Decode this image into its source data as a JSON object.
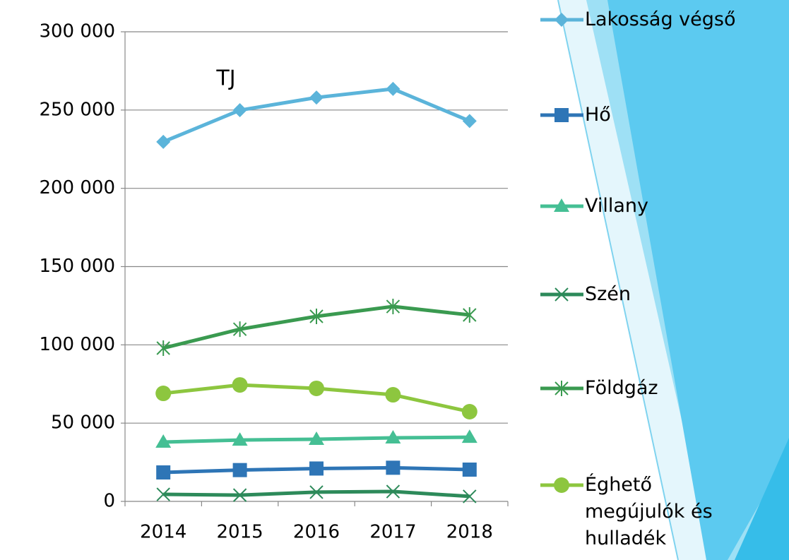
{
  "chart_data": {
    "type": "line",
    "annotation": "TJ",
    "categories": [
      "2014",
      "2015",
      "2016",
      "2017",
      "2018"
    ],
    "series": [
      {
        "name": "Lakosság végső",
        "color": "#5bb4da",
        "marker": "diamond",
        "values": [
          229700,
          249900,
          258000,
          263500,
          243000
        ]
      },
      {
        "name": "Hő",
        "color": "#2e75b6",
        "marker": "square",
        "values": [
          18500,
          20000,
          21000,
          21500,
          20300
        ]
      },
      {
        "name": "Villany",
        "color": "#45bf94",
        "marker": "triangle",
        "values": [
          37900,
          39200,
          39700,
          40600,
          41000
        ]
      },
      {
        "name": "Szén",
        "color": "#2d8a5a",
        "marker": "x",
        "values": [
          4500,
          4000,
          5900,
          6300,
          3200
        ]
      },
      {
        "name": "Földgáz",
        "color": "#3a9a50",
        "marker": "star",
        "values": [
          97900,
          110000,
          118200,
          124500,
          119100
        ]
      },
      {
        "name": "Éghető megújulók és hulladék",
        "color": "#8dc63f",
        "marker": "circle",
        "values": [
          69000,
          74400,
          72200,
          68100,
          57300
        ]
      }
    ],
    "ylim": [
      0,
      300000
    ],
    "yticks": [
      0,
      {
        "value": 50000,
        "label": "50 000"
      },
      {
        "value": 100000,
        "label": "100 000"
      },
      {
        "value": 150000,
        "label": "150 000"
      },
      {
        "value": 200000,
        "label": "200 000"
      },
      {
        "value": 250000,
        "label": "250 000"
      },
      {
        "value": 300000,
        "label": "300 000"
      }
    ],
    "grid": true
  }
}
